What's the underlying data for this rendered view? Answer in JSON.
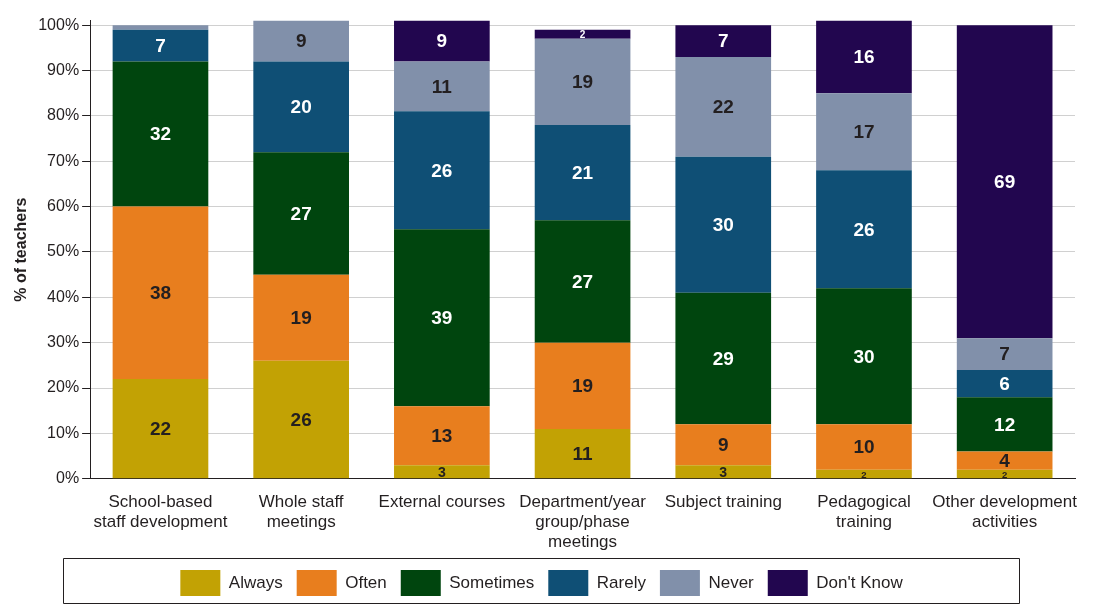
{
  "chart_data": {
    "type": "bar",
    "stacked": true,
    "ylabel": "% of teachers",
    "categories": [
      "School-based staff development",
      "Whole staff meetings",
      "External courses",
      "Department/year group/phase meetings",
      "Subject training",
      "Pedagogical training",
      "Other development activities"
    ],
    "series": [
      {
        "name": "Always",
        "color": "#c2a204",
        "values": [
          22,
          26,
          3,
          11,
          3,
          2,
          2
        ]
      },
      {
        "name": "Often",
        "color": "#e87e1e",
        "values": [
          38,
          19,
          13,
          19,
          9,
          10,
          4
        ]
      },
      {
        "name": "Sometimes",
        "color": "#00450e",
        "values": [
          32,
          27,
          39,
          27,
          29,
          30,
          12
        ]
      },
      {
        "name": "Rarely",
        "color": "#0f4f75",
        "values": [
          7,
          20,
          26,
          21,
          30,
          26,
          6
        ]
      },
      {
        "name": "Never",
        "color": "#8190aa",
        "values": [
          1,
          9,
          11,
          19,
          22,
          17,
          7
        ],
        "value_labels": [
          null,
          "9",
          "11",
          "19",
          "22",
          "17",
          "7"
        ]
      },
      {
        "name": "Don't Know",
        "color": "#22064f",
        "values": [
          null,
          null,
          9,
          2,
          7,
          16,
          69
        ]
      }
    ],
    "data_labels": true,
    "ylim": [
      0,
      101
    ],
    "yticks": [
      {
        "value": 0,
        "label": "0%"
      },
      {
        "value": 10,
        "label": "10%"
      },
      {
        "value": 20,
        "label": "20%"
      },
      {
        "value": 30,
        "label": "30%"
      },
      {
        "value": 40,
        "label": "40%"
      },
      {
        "value": 50,
        "label": "50%"
      },
      {
        "value": 60,
        "label": "60%"
      },
      {
        "value": 70,
        "label": "70%"
      },
      {
        "value": 80,
        "label": "80%"
      },
      {
        "value": 90,
        "label": "90%"
      },
      {
        "value": 100,
        "label": "100%"
      }
    ],
    "grid": "y",
    "legend": "bottom"
  }
}
